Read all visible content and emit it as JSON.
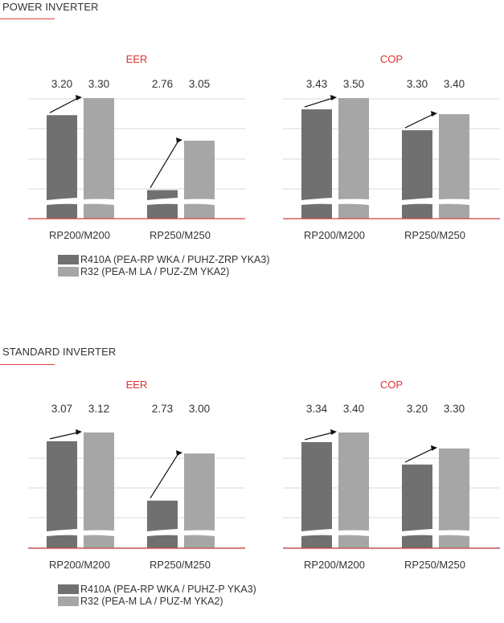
{
  "sections": [
    {
      "title": "POWER INVERTER",
      "legend": [
        {
          "label": "R410A (PEA-RP WKA / PUHZ-ZRP YKA3)",
          "color": "#707070"
        },
        {
          "label": "R32 (PEA-M LA / PUZ-ZM YKA2)",
          "color": "#a6a6a6"
        }
      ]
    },
    {
      "title": "STANDARD INVERTER",
      "legend": [
        {
          "label": "R410A (PEA-RP WKA / PUHZ-P YKA3)",
          "color": "#707070"
        },
        {
          "label": "R32 (PEA-M LA / PUZ-M YKA2)",
          "color": "#a6a6a6"
        }
      ]
    }
  ],
  "chart_data": [
    {
      "type": "bar",
      "section": "POWER INVERTER",
      "title": "EER",
      "categories": [
        "RP200/M200",
        "RP250/M250"
      ],
      "series": [
        {
          "name": "R410A (PEA-RP WKA / PUHZ-ZRP YKA3)",
          "values": [
            3.2,
            2.76
          ]
        },
        {
          "name": "R32 (PEA-M LA / PUZ-ZM YKA2)",
          "values": [
            3.3,
            3.05
          ]
        }
      ],
      "data_labels": [
        "3.20",
        "3.30",
        "2.76",
        "3.05"
      ],
      "axis_break": true,
      "grid": true
    },
    {
      "type": "bar",
      "section": "POWER INVERTER",
      "title": "COP",
      "categories": [
        "RP200/M200",
        "RP250/M250"
      ],
      "series": [
        {
          "name": "R410A (PEA-RP WKA / PUHZ-ZRP YKA3)",
          "values": [
            3.43,
            3.3
          ]
        },
        {
          "name": "R32 (PEA-M LA / PUZ-ZM YKA2)",
          "values": [
            3.5,
            3.4
          ]
        }
      ],
      "data_labels": [
        "3.43",
        "3.50",
        "3.30",
        "3.40"
      ],
      "axis_break": true,
      "grid": true
    },
    {
      "type": "bar",
      "section": "STANDARD INVERTER",
      "title": "EER",
      "categories": [
        "RP200/M200",
        "RP250/M250"
      ],
      "series": [
        {
          "name": "R410A (PEA-RP WKA / PUHZ-P YKA3)",
          "values": [
            3.07,
            2.73
          ]
        },
        {
          "name": "R32 (PEA-M LA / PUZ-M YKA2)",
          "values": [
            3.12,
            3.0
          ]
        }
      ],
      "data_labels": [
        "3.07",
        "3.12",
        "2.73",
        "3.00"
      ],
      "axis_break": true,
      "grid": true
    },
    {
      "type": "bar",
      "section": "STANDARD INVERTER",
      "title": "COP",
      "categories": [
        "RP200/M200",
        "RP250/M250"
      ],
      "series": [
        {
          "name": "R410A (PEA-RP WKA / PUHZ-P YKA3)",
          "values": [
            3.34,
            3.2
          ]
        },
        {
          "name": "R32 (PEA-M LA / PUZ-M YKA2)",
          "values": [
            3.4,
            3.3
          ]
        }
      ],
      "data_labels": [
        "3.34",
        "3.40",
        "3.20",
        "3.30"
      ],
      "axis_break": true,
      "grid": true
    }
  ],
  "colors": {
    "title": "#e03030",
    "baseline": "#d04040",
    "grid": "#d8d8d8",
    "dark": "#707070",
    "light": "#a6a6a6",
    "arrow": "#111111"
  }
}
